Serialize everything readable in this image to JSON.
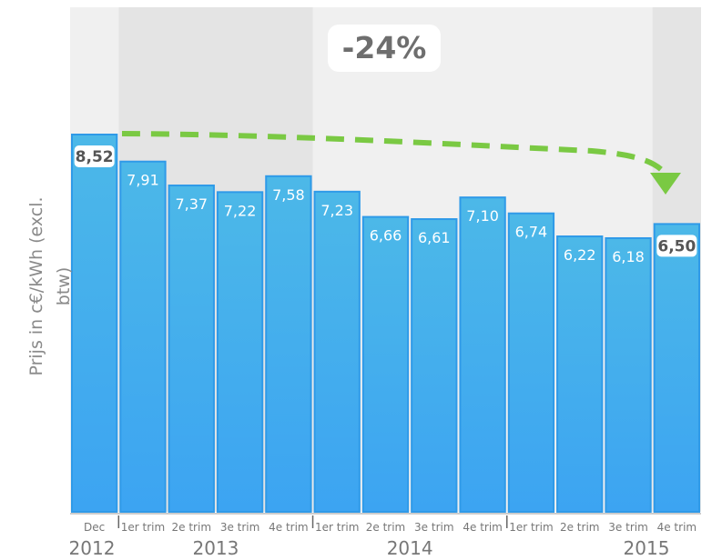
{
  "chart_data": {
    "type": "bar",
    "ylabel": "Prijs in c€/kWh (excl. btw)",
    "ylim": [
      0,
      8.52
    ],
    "categories": [
      "Dec",
      "1er trim",
      "2e trim",
      "3e trim",
      "4e trim",
      "1er trim",
      "2e trim",
      "3e trim",
      "4e trim",
      "1er trim",
      "2e trim",
      "3e trim",
      "4e trim"
    ],
    "year_groups": [
      {
        "label": "2012",
        "from": 0,
        "to": 0
      },
      {
        "label": "2013",
        "from": 1,
        "to": 4
      },
      {
        "label": "2014",
        "from": 5,
        "to": 8
      },
      {
        "label": "2015",
        "from": 9,
        "to": 12
      }
    ],
    "values": [
      8.52,
      7.91,
      7.37,
      7.22,
      7.58,
      7.23,
      6.66,
      6.61,
      7.1,
      6.74,
      6.22,
      6.18,
      6.5
    ],
    "value_labels": [
      "8,52",
      "7,91",
      "7,37",
      "7,22",
      "7,58",
      "7,23",
      "6,66",
      "6,61",
      "7,10",
      "6,74",
      "6,22",
      "6,18",
      "6,50"
    ],
    "highlighted": [
      0,
      12
    ],
    "annotation": "-24%",
    "colors": {
      "bar_top": "#4cb8e8",
      "bar_bottom": "#3ca4f2",
      "bar_edge": "#2f9ae8",
      "trend_arrow": "#7ac943",
      "band_light": "#f0f0f0",
      "band_dark": "#e4e4e4",
      "axis_text": "#777777"
    }
  }
}
